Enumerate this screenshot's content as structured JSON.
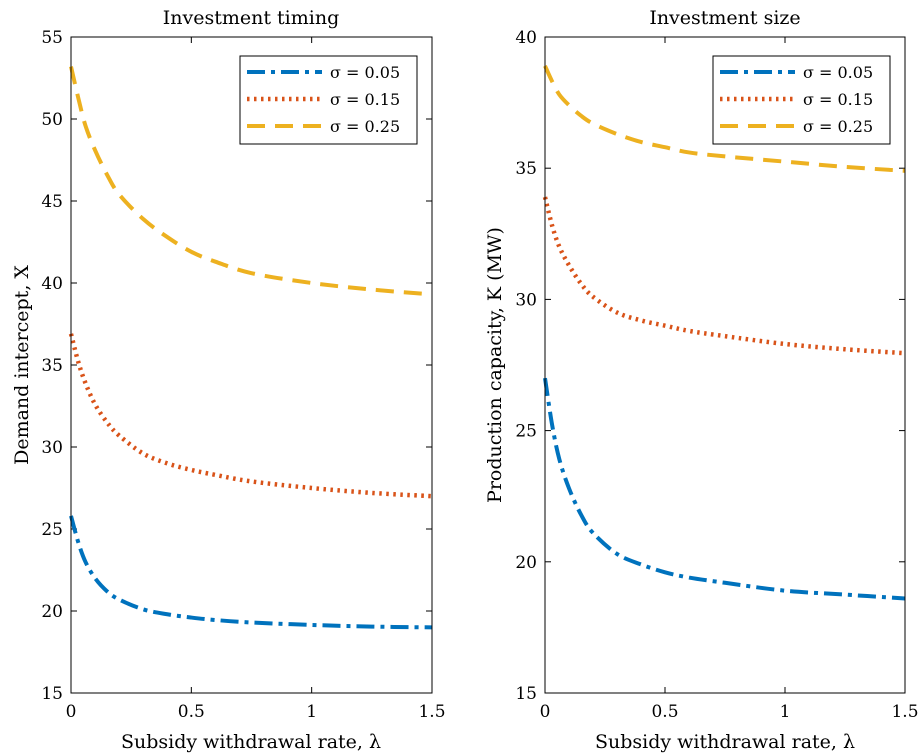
{
  "chart_data": [
    {
      "type": "line",
      "title": "Investment timing",
      "xlabel": "Subsidy withdrawal rate, λ",
      "ylabel": "Demand intercept, X",
      "xlim": [
        0,
        1.5
      ],
      "ylim": [
        15,
        55
      ],
      "xticks": [
        "0",
        "0.5",
        "1",
        "1.5"
      ],
      "yticks": [
        "15",
        "20",
        "25",
        "30",
        "35",
        "40",
        "45",
        "50",
        "55"
      ],
      "legend_position": "top-right",
      "series": [
        {
          "name": "σ = 0.05",
          "color": "#0072BD",
          "style": "dashdot",
          "x": [
            0,
            0.03,
            0.06,
            0.1,
            0.15,
            0.2,
            0.3,
            0.4,
            0.5,
            0.6,
            0.75,
            1.0,
            1.25,
            1.5
          ],
          "y": [
            25.8,
            24.2,
            23.0,
            22.0,
            21.2,
            20.7,
            20.1,
            19.8,
            19.6,
            19.45,
            19.3,
            19.15,
            19.05,
            19.0
          ]
        },
        {
          "name": "σ = 0.15",
          "color": "#D95319",
          "style": "dotted",
          "x": [
            0,
            0.03,
            0.06,
            0.1,
            0.15,
            0.2,
            0.3,
            0.4,
            0.5,
            0.6,
            0.75,
            1.0,
            1.25,
            1.5
          ],
          "y": [
            36.9,
            35.2,
            33.9,
            32.6,
            31.5,
            30.7,
            29.6,
            29.0,
            28.6,
            28.3,
            27.9,
            27.5,
            27.2,
            27.0
          ]
        },
        {
          "name": "σ = 0.25",
          "color": "#EDB120",
          "style": "dashed",
          "x": [
            0,
            0.03,
            0.06,
            0.1,
            0.15,
            0.2,
            0.3,
            0.4,
            0.5,
            0.6,
            0.75,
            1.0,
            1.25,
            1.5
          ],
          "y": [
            53.2,
            51.3,
            49.6,
            48.1,
            46.6,
            45.4,
            43.9,
            42.8,
            41.9,
            41.3,
            40.6,
            40.0,
            39.6,
            39.3
          ]
        }
      ]
    },
    {
      "type": "line",
      "title": "Investment size",
      "xlabel": "Subsidy withdrawal rate, λ",
      "ylabel": "Production capacity, K (MW)",
      "xlim": [
        0,
        1.5
      ],
      "ylim": [
        15,
        40
      ],
      "xticks": [
        "0",
        "0.5",
        "1",
        "1.5"
      ],
      "yticks": [
        "15",
        "20",
        "25",
        "30",
        "35",
        "40"
      ],
      "legend_position": "top-right",
      "series": [
        {
          "name": "σ = 0.05",
          "color": "#0072BD",
          "style": "dashdot",
          "x": [
            0,
            0.03,
            0.06,
            0.1,
            0.15,
            0.2,
            0.3,
            0.4,
            0.5,
            0.6,
            0.75,
            1.0,
            1.25,
            1.5
          ],
          "y": [
            27.0,
            25.2,
            23.9,
            22.8,
            21.8,
            21.1,
            20.3,
            19.9,
            19.6,
            19.4,
            19.2,
            18.9,
            18.75,
            18.6
          ]
        },
        {
          "name": "σ = 0.15",
          "color": "#D95319",
          "style": "dotted",
          "x": [
            0,
            0.03,
            0.06,
            0.1,
            0.15,
            0.2,
            0.3,
            0.4,
            0.5,
            0.6,
            0.75,
            1.0,
            1.25,
            1.5
          ],
          "y": [
            33.9,
            32.8,
            32.0,
            31.3,
            30.6,
            30.1,
            29.5,
            29.2,
            29.0,
            28.8,
            28.6,
            28.3,
            28.1,
            27.95
          ]
        },
        {
          "name": "σ = 0.25",
          "color": "#EDB120",
          "style": "dashed",
          "x": [
            0,
            0.03,
            0.06,
            0.1,
            0.15,
            0.2,
            0.3,
            0.4,
            0.5,
            0.6,
            0.75,
            1.0,
            1.25,
            1.5
          ],
          "y": [
            38.9,
            38.3,
            37.8,
            37.4,
            37.0,
            36.7,
            36.3,
            36.0,
            35.8,
            35.6,
            35.45,
            35.25,
            35.05,
            34.9
          ]
        }
      ]
    }
  ]
}
